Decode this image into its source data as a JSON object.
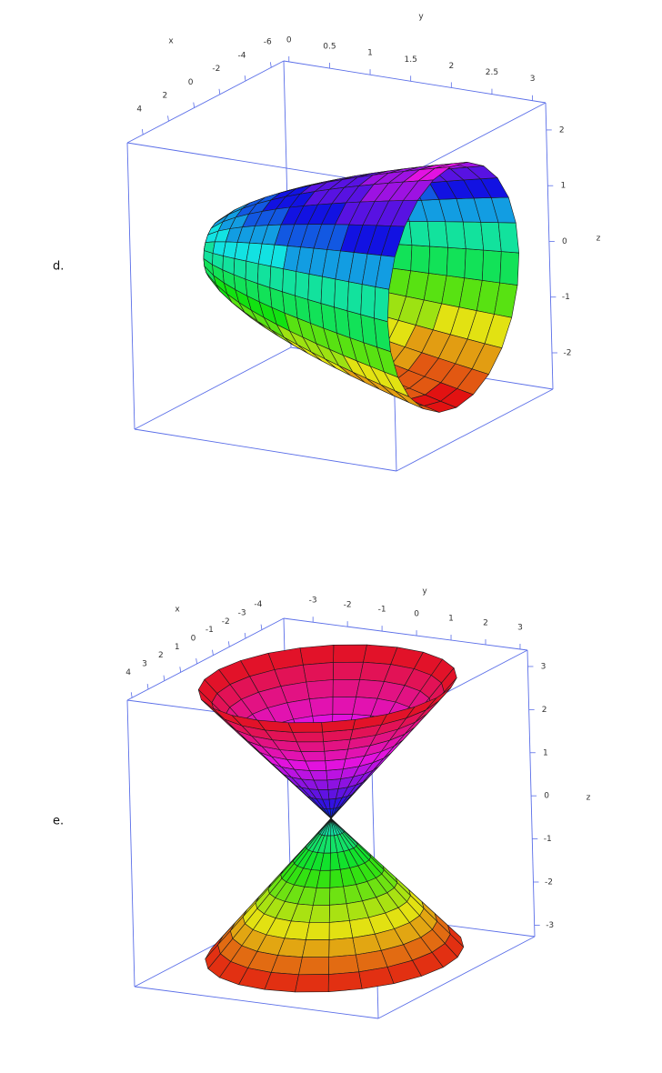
{
  "figures": [
    {
      "label": "d.",
      "x_axis": {
        "title": "x",
        "ticks": [
          4,
          2,
          0,
          -2,
          -4,
          -6
        ]
      },
      "y_axis": {
        "title": "y",
        "ticks": [
          0,
          0.5,
          1,
          1.5,
          2,
          2.5,
          3
        ]
      },
      "z_axis": {
        "title": "z",
        "ticks": [
          2,
          1,
          0,
          -1,
          -2
        ]
      }
    },
    {
      "label": "e.",
      "x_axis": {
        "title": "x",
        "ticks": [
          4,
          3,
          2,
          1,
          0,
          -1,
          -2,
          -3,
          -4
        ]
      },
      "y_axis": {
        "title": "y",
        "ticks": [
          -3,
          -2,
          -1,
          0,
          1,
          2,
          3
        ]
      },
      "z_axis": {
        "title": "z",
        "ticks": [
          3,
          2,
          1,
          0,
          -1,
          -2,
          -3
        ]
      }
    }
  ]
}
